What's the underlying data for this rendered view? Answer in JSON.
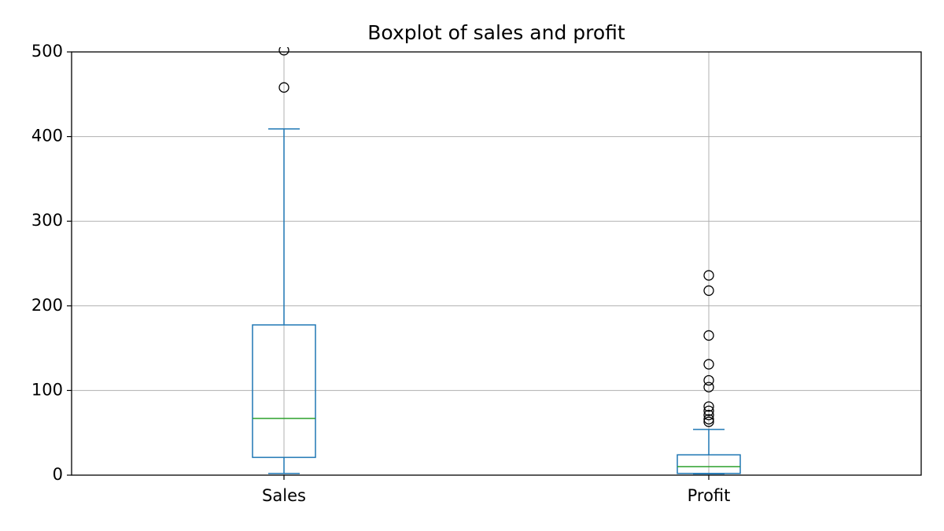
{
  "chart_data": {
    "type": "box",
    "title": "Boxplot of sales and profit",
    "categories": [
      "Sales",
      "Profit"
    ],
    "boxes": [
      {
        "whislo": 2,
        "q1": 21,
        "med": 67,
        "q3": 177.5,
        "whishi": 409,
        "fliers": [
          458,
          502
        ]
      },
      {
        "whislo": 1.5,
        "q1": 2,
        "med": 10,
        "q3": 24,
        "whishi": 54,
        "fliers": [
          236,
          218,
          165,
          131,
          112,
          104,
          81,
          76,
          71,
          66,
          63
        ]
      }
    ],
    "box_color": "#1f77b4",
    "median_color": "#2ca02c",
    "flier_color": "#000000",
    "ylim": [
      0,
      500
    ],
    "yticks": [
      0,
      100,
      200,
      300,
      400,
      500
    ],
    "grid": true
  }
}
